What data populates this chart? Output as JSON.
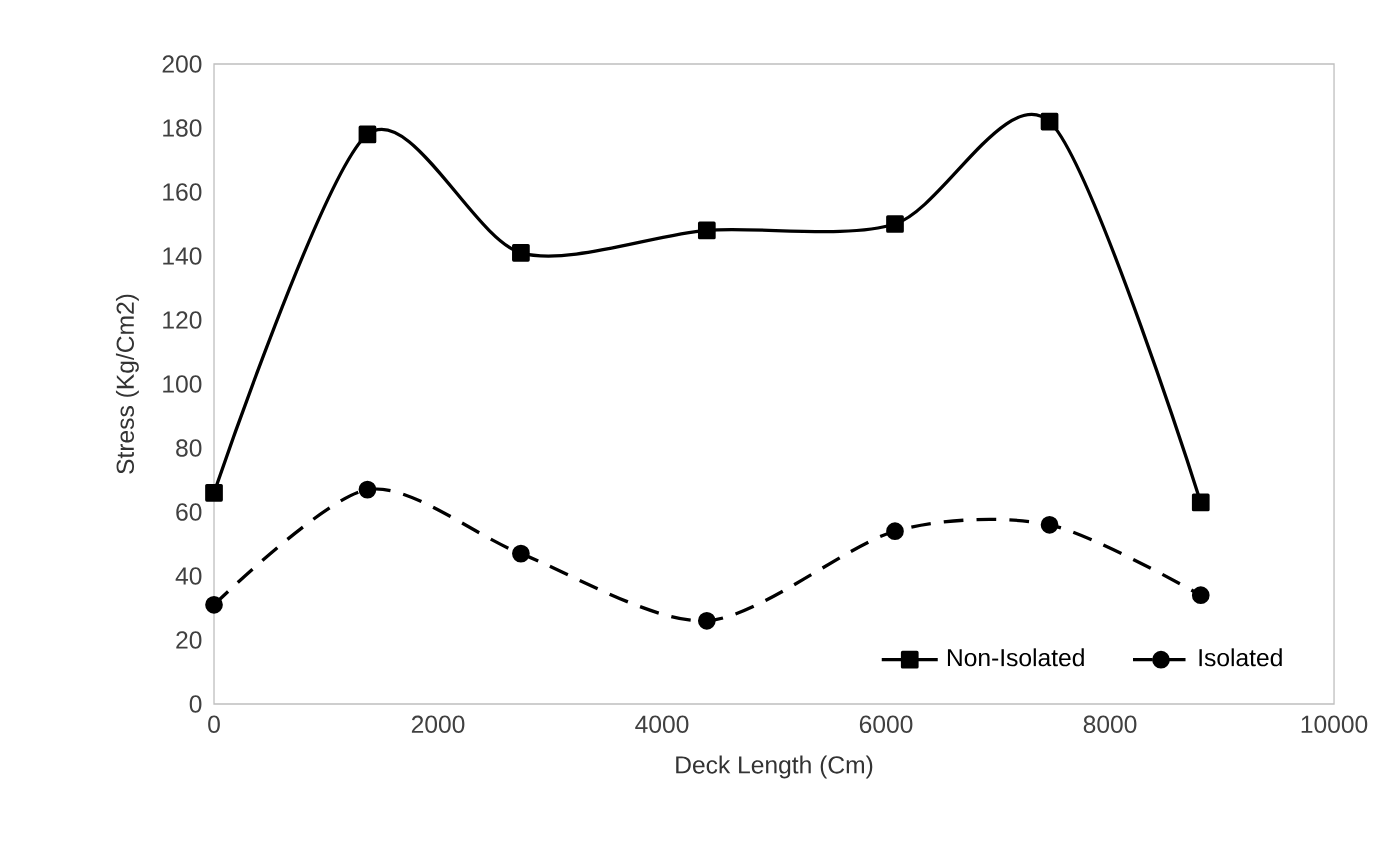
{
  "chart_data": {
    "type": "line",
    "xlabel": "Deck Length (Cm)",
    "ylabel": "Stress (Kg/Cm2)",
    "xlim": [
      0,
      10000
    ],
    "xticks": [
      0,
      2000,
      4000,
      6000,
      8000,
      10000
    ],
    "ylim": [
      0,
      200
    ],
    "yticks": [
      0,
      20,
      40,
      60,
      80,
      100,
      120,
      140,
      160,
      180,
      200
    ],
    "grid": false,
    "legend": "bottom right",
    "x": [
      0,
      1370,
      2740,
      4400,
      6080,
      7460,
      8810
    ],
    "series": [
      {
        "name": "Non-Isolated",
        "color": "#000000",
        "marker": "square",
        "line_style": "solid",
        "values": [
          66,
          178,
          141,
          148,
          150,
          182,
          63
        ]
      },
      {
        "name": "Isolated",
        "color": "#000000",
        "marker": "circle",
        "line_style": "dashed",
        "values": [
          31,
          67,
          47,
          26,
          54,
          56,
          34
        ]
      }
    ]
  }
}
